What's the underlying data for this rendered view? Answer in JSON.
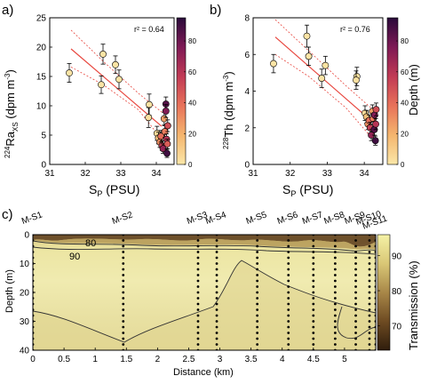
{
  "panels": {
    "a": "a)",
    "b": "b)",
    "c": "c)"
  },
  "chart_data": [
    {
      "id": "a",
      "type": "scatter",
      "xlabel": "S_P (PSU)",
      "ylabel": "224Ra_XS (dpm m^-3)",
      "xlim": [
        31,
        34.5
      ],
      "ylim": [
        0,
        25
      ],
      "xticks": [
        31,
        32,
        33,
        34
      ],
      "yticks": [
        0,
        5,
        10,
        15,
        20,
        25
      ],
      "annotation": "r² = 0.64",
      "fit": {
        "x": [
          31.6,
          34.15
        ],
        "y": [
          19.7,
          6.5
        ]
      },
      "ci_upper": {
        "x": [
          31.6,
          32.5,
          33.5,
          34.2
        ],
        "y": [
          22.9,
          17.6,
          12.1,
          8.7
        ]
      },
      "ci_lower": {
        "x": [
          31.6,
          32.5,
          33.5,
          34.2
        ],
        "y": [
          16.6,
          13.6,
          9.3,
          3.9
        ]
      },
      "colorbar": {
        "label": "Depth (m)",
        "ticks": [
          0,
          20,
          40,
          60,
          80
        ],
        "range": [
          0,
          95
        ]
      },
      "points": [
        {
          "x": 31.55,
          "y": 15.6,
          "e": 1.6,
          "d": 1
        },
        {
          "x": 32.45,
          "y": 13.6,
          "e": 1.5,
          "d": 1
        },
        {
          "x": 32.5,
          "y": 18.8,
          "e": 1.7,
          "d": 1
        },
        {
          "x": 32.85,
          "y": 17.0,
          "e": 1.5,
          "d": 1
        },
        {
          "x": 32.95,
          "y": 14.5,
          "e": 1.6,
          "d": 2
        },
        {
          "x": 33.8,
          "y": 10.2,
          "e": 1.8,
          "d": 2
        },
        {
          "x": 33.78,
          "y": 8.0,
          "e": 1.7,
          "d": 3
        },
        {
          "x": 34.02,
          "y": 5.3,
          "e": 1.2,
          "d": 5
        },
        {
          "x": 34.06,
          "y": 4.5,
          "e": 1.0,
          "d": 15
        },
        {
          "x": 34.1,
          "y": 3.8,
          "e": 0.9,
          "d": 30
        },
        {
          "x": 34.13,
          "y": 4.8,
          "e": 1.0,
          "d": 40
        },
        {
          "x": 34.16,
          "y": 3.2,
          "e": 0.8,
          "d": 55
        },
        {
          "x": 34.19,
          "y": 2.7,
          "e": 0.8,
          "d": 70
        },
        {
          "x": 34.22,
          "y": 7.8,
          "e": 1.1,
          "d": 25
        },
        {
          "x": 34.24,
          "y": 5.6,
          "e": 1.0,
          "d": 35
        },
        {
          "x": 34.27,
          "y": 10.3,
          "e": 1.2,
          "d": 85
        },
        {
          "x": 34.27,
          "y": 9.1,
          "e": 1.1,
          "d": 75
        },
        {
          "x": 34.29,
          "y": 4.3,
          "e": 0.9,
          "d": 60
        },
        {
          "x": 34.3,
          "y": 1.9,
          "e": 0.7,
          "d": 90
        },
        {
          "x": 34.31,
          "y": 3.5,
          "e": 0.8,
          "d": 45
        },
        {
          "x": 34.32,
          "y": 6.6,
          "e": 1.0,
          "d": 50
        }
      ]
    },
    {
      "id": "b",
      "type": "scatter",
      "xlabel": "S_P (PSU)",
      "ylabel": "228Th (dpm m^-3)",
      "xlim": [
        31,
        34.5
      ],
      "ylim": [
        0,
        8
      ],
      "xticks": [
        31,
        32,
        33,
        34
      ],
      "yticks": [
        0,
        2,
        4,
        6,
        8
      ],
      "annotation": "r² = 0.76",
      "fit": {
        "x": [
          31.6,
          34.15
        ],
        "y": [
          6.95,
          2.45
        ]
      },
      "ci_upper": {
        "x": [
          31.6,
          32.5,
          33.5,
          34.2
        ],
        "y": [
          7.9,
          6.2,
          4.3,
          3.05
        ]
      },
      "ci_lower": {
        "x": [
          31.6,
          32.5,
          33.5,
          34.2
        ],
        "y": [
          6.0,
          4.8,
          3.1,
          1.45
        ]
      },
      "colorbar": {
        "label": "Depth (m)",
        "ticks": [
          0,
          20,
          40,
          60,
          80
        ],
        "range": [
          0,
          95
        ]
      },
      "points": [
        {
          "x": 31.55,
          "y": 5.5,
          "e": 0.5,
          "d": 1
        },
        {
          "x": 32.45,
          "y": 7.0,
          "e": 0.6,
          "d": 1
        },
        {
          "x": 32.5,
          "y": 5.9,
          "e": 0.5,
          "d": 1
        },
        {
          "x": 32.85,
          "y": 4.7,
          "e": 0.5,
          "d": 1
        },
        {
          "x": 32.95,
          "y": 5.4,
          "e": 0.5,
          "d": 2
        },
        {
          "x": 33.8,
          "y": 4.8,
          "e": 0.5,
          "d": 2
        },
        {
          "x": 33.78,
          "y": 4.6,
          "e": 0.5,
          "d": 3
        },
        {
          "x": 34.02,
          "y": 2.8,
          "e": 0.4,
          "d": 5
        },
        {
          "x": 34.06,
          "y": 2.6,
          "e": 0.35,
          "d": 15
        },
        {
          "x": 34.1,
          "y": 2.2,
          "e": 0.3,
          "d": 30
        },
        {
          "x": 34.13,
          "y": 2.4,
          "e": 0.3,
          "d": 40
        },
        {
          "x": 34.16,
          "y": 2.0,
          "e": 0.3,
          "d": 55
        },
        {
          "x": 34.19,
          "y": 1.6,
          "e": 0.3,
          "d": 70
        },
        {
          "x": 34.22,
          "y": 2.9,
          "e": 0.35,
          "d": 25
        },
        {
          "x": 34.24,
          "y": 2.5,
          "e": 0.3,
          "d": 35
        },
        {
          "x": 34.27,
          "y": 1.9,
          "e": 0.3,
          "d": 85
        },
        {
          "x": 34.28,
          "y": 2.7,
          "e": 0.35,
          "d": 75
        },
        {
          "x": 34.3,
          "y": 1.3,
          "e": 0.25,
          "d": 90
        },
        {
          "x": 34.31,
          "y": 2.2,
          "e": 0.3,
          "d": 60
        },
        {
          "x": 34.32,
          "y": 3.0,
          "e": 0.35,
          "d": 50
        }
      ]
    },
    {
      "id": "c",
      "type": "heatmap",
      "xlabel": "Distance (km)",
      "ylabel": "Depth (m)",
      "xlim": [
        0,
        5.5
      ],
      "ylim": [
        0,
        40
      ],
      "xticks": [
        0,
        0.5,
        1,
        1.5,
        2,
        2.5,
        3,
        3.5,
        4,
        4.5,
        5
      ],
      "yticks": [
        0,
        10,
        20,
        30,
        40
      ],
      "colorbar": {
        "label": "Transmission (%)",
        "ticks": [
          70,
          80,
          90
        ],
        "range": [
          63,
          96
        ]
      },
      "contour_labels": [
        {
          "text": "80",
          "x": 0.85,
          "y": 2.5
        },
        {
          "text": "90",
          "x": 0.95,
          "y": 7.5
        }
      ],
      "stations": [
        {
          "name": "M-S1",
          "x": 0.0,
          "depth": 40
        },
        {
          "name": "M-S2",
          "x": 1.45,
          "depth": 40
        },
        {
          "name": "M-S3",
          "x": 2.65,
          "depth": 40
        },
        {
          "name": "M-S4",
          "x": 2.95,
          "depth": 40
        },
        {
          "name": "M-S5",
          "x": 3.6,
          "depth": 40
        },
        {
          "name": "M-S6",
          "x": 4.1,
          "depth": 40
        },
        {
          "name": "M-S7",
          "x": 4.5,
          "depth": 40
        },
        {
          "name": "M-S8",
          "x": 4.85,
          "depth": 40
        },
        {
          "name": "M-S9",
          "x": 5.18,
          "depth": 40
        },
        {
          "name": "M-S10",
          "x": 5.4,
          "depth": 40
        },
        {
          "name": "M-S11",
          "x": 5.5,
          "depth": 40
        }
      ]
    }
  ]
}
